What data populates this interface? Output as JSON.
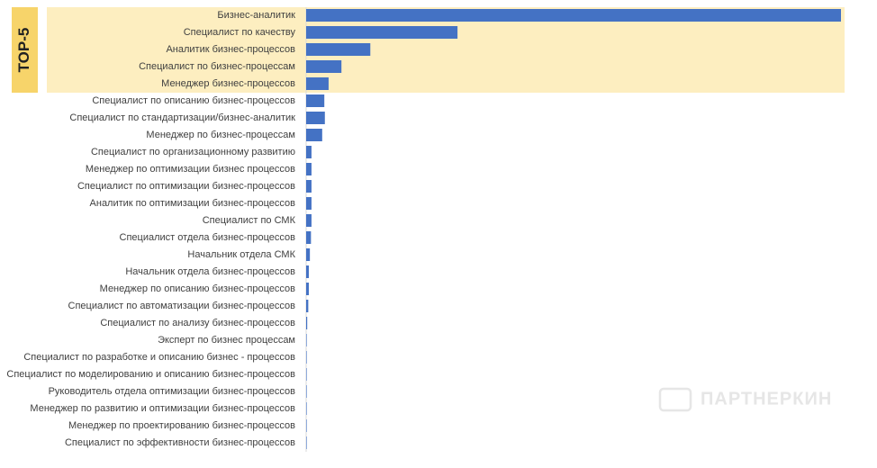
{
  "chart_data": {
    "type": "hbar",
    "highlight_label": "TOP-5",
    "highlight_count": 5,
    "watermark": "ПАРТНЕРКИН",
    "color": "#4472c4",
    "highlight_color": "#fdeec0",
    "xlim": [
      0,
      100
    ],
    "categories": [
      "Бизнес-аналитик",
      "Специалист по качеству",
      "Аналитик бизнес-процессов",
      "Специалист по бизнес-процессам",
      "Менеджер бизнес-процессов",
      "Специалист по описанию бизнес-процессов",
      "Специалист по стандартизации/бизнес-аналитик",
      "Менеджер по бизнес-процессам",
      "Специалист по организационному развитию",
      "Менеджер по оптимизации бизнес процессов",
      "Специалист по оптимизации бизнес-процессов",
      "Аналитик по оптимизации бизнес-процессов",
      "Специалист по СМК",
      "Специалист отдела бизнес-процессов",
      "Начальник отдела СМК",
      "Начальник отдела бизнес-процессов",
      "Менеджер по описанию бизнес-процессов",
      "Специалист по автоматизации бизнес-процессов",
      "Специалист по анализу бизнес-процессов",
      "Эксперт по бизнес процессам",
      "Специалист по разработке и описанию бизнес - процессов",
      "Специалист по моделированию и описанию бизнес-процессов",
      "Руководитель отдела оптимизации бизнес-процессов",
      "Менеджер по развитию и оптимизации бизнес-процессов",
      "Менеджер по проектированию бизнес-процессов",
      "Специалист по эффективности бизнес-процессов"
    ],
    "values": [
      100,
      28.3,
      12,
      6.6,
      4.2,
      3.4,
      3.5,
      3.0,
      1.0,
      1.0,
      1.0,
      1.0,
      1.0,
      0.9,
      0.7,
      0.5,
      0.5,
      0.4,
      0.2,
      0.1,
      0.1,
      0.1,
      0.1,
      0.1,
      0.1,
      0.1
    ]
  }
}
